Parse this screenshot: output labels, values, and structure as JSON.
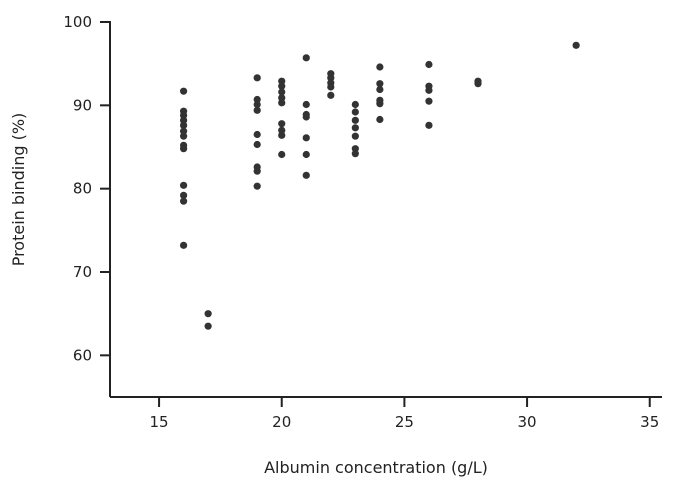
{
  "chart_data": {
    "type": "scatter",
    "title": "",
    "xlabel": "Albumin concentration (g/L)",
    "ylabel": "Protein binding (%)",
    "xlim": [
      13,
      35.5
    ],
    "ylim": [
      55,
      100
    ],
    "xticks": [
      "15",
      "20",
      "25",
      "30",
      "35"
    ],
    "yticks": [
      "60",
      "70",
      "80",
      "90",
      "100"
    ],
    "grid": false,
    "marker_color": "#333333",
    "axis_color": "#222222",
    "series": [
      {
        "points": [
          [
            16,
            91.7
          ],
          [
            16,
            89.3
          ],
          [
            16,
            88.8
          ],
          [
            16,
            88.2
          ],
          [
            16,
            87.6
          ],
          [
            16,
            86.9
          ],
          [
            16,
            86.3
          ],
          [
            16,
            85.2
          ],
          [
            16,
            84.8
          ],
          [
            16,
            80.4
          ],
          [
            16,
            79.2
          ],
          [
            16,
            78.5
          ],
          [
            16,
            73.2
          ],
          [
            17,
            65.0
          ],
          [
            17,
            63.5
          ],
          [
            19,
            93.3
          ],
          [
            19,
            90.7
          ],
          [
            19,
            90.1
          ],
          [
            19,
            89.4
          ],
          [
            19,
            86.5
          ],
          [
            19,
            85.3
          ],
          [
            19,
            82.6
          ],
          [
            19,
            82.1
          ],
          [
            19,
            80.3
          ],
          [
            20,
            92.9
          ],
          [
            20,
            92.3
          ],
          [
            20,
            91.6
          ],
          [
            20,
            90.9
          ],
          [
            20,
            90.3
          ],
          [
            20,
            87.8
          ],
          [
            20,
            87.0
          ],
          [
            20,
            86.4
          ],
          [
            20,
            84.1
          ],
          [
            21,
            95.7
          ],
          [
            21,
            90.1
          ],
          [
            21,
            88.9
          ],
          [
            21,
            88.6
          ],
          [
            21,
            86.1
          ],
          [
            21,
            84.1
          ],
          [
            21,
            81.6
          ],
          [
            22,
            93.8
          ],
          [
            22,
            93.3
          ],
          [
            22,
            92.7
          ],
          [
            22,
            92.2
          ],
          [
            22,
            91.2
          ],
          [
            23,
            90.1
          ],
          [
            23,
            89.2
          ],
          [
            23,
            88.2
          ],
          [
            23,
            87.3
          ],
          [
            23,
            86.3
          ],
          [
            23,
            84.8
          ],
          [
            23,
            84.2
          ],
          [
            24,
            94.6
          ],
          [
            24,
            92.6
          ],
          [
            24,
            91.9
          ],
          [
            24,
            90.6
          ],
          [
            24,
            90.2
          ],
          [
            24,
            88.3
          ],
          [
            26,
            94.9
          ],
          [
            26,
            92.3
          ],
          [
            26,
            91.8
          ],
          [
            26,
            90.5
          ],
          [
            26,
            87.6
          ],
          [
            28,
            92.9
          ],
          [
            28,
            92.6
          ],
          [
            32,
            97.2
          ]
        ]
      }
    ]
  }
}
